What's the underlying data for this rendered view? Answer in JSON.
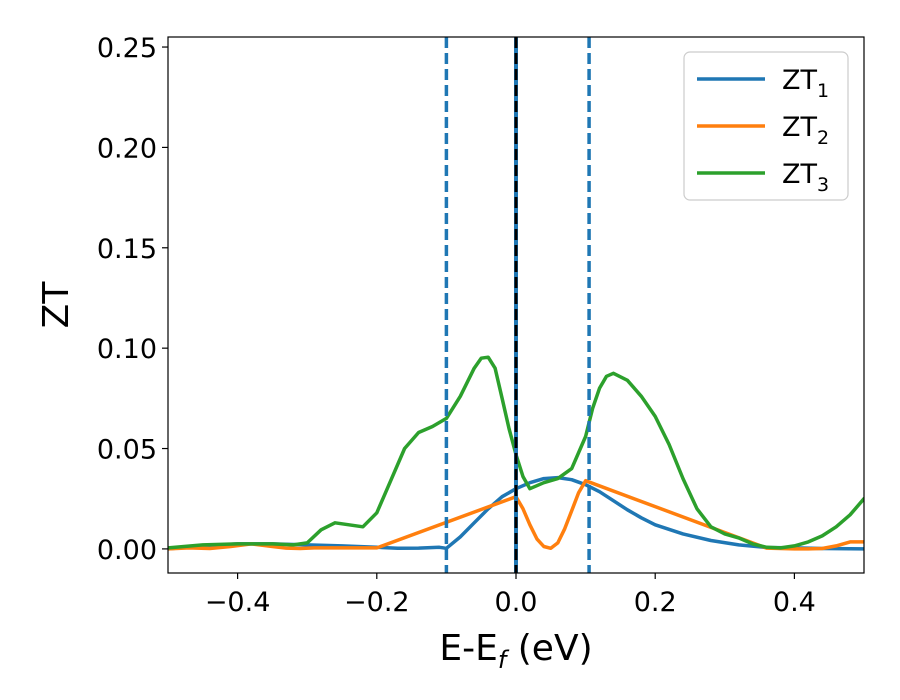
{
  "chart_data": {
    "type": "line",
    "xlabel": {
      "main": "E-E",
      "sub": "f",
      "unit": " (eV)"
    },
    "ylabel": "ZT",
    "xlim": [
      -0.5,
      0.5
    ],
    "ylim": [
      -0.012,
      0.255
    ],
    "xticks": [
      {
        "value": -0.4,
        "label": "−0.4"
      },
      {
        "value": -0.2,
        "label": "−0.2"
      },
      {
        "value": 0.0,
        "label": "0.0"
      },
      {
        "value": 0.2,
        "label": "0.2"
      },
      {
        "value": 0.4,
        "label": "0.4"
      }
    ],
    "yticks": [
      {
        "value": 0.0,
        "label": "0.00"
      },
      {
        "value": 0.05,
        "label": "0.05"
      },
      {
        "value": 0.1,
        "label": "0.10"
      },
      {
        "value": 0.15,
        "label": "0.15"
      },
      {
        "value": 0.2,
        "label": "0.20"
      },
      {
        "value": 0.25,
        "label": "0.25"
      }
    ],
    "grid": false,
    "legend_position": "top-right",
    "vlines": [
      {
        "x": -0.1,
        "style": "dashed",
        "color": "#1f77b4"
      },
      {
        "x": 0.105,
        "style": "dashed",
        "color": "#1f77b4"
      },
      {
        "x": 0.0,
        "style": "dashed",
        "color": "#000000"
      }
    ],
    "series": [
      {
        "name": "ZT",
        "sub": "1",
        "color": "#1f77b4",
        "x": [
          -0.5,
          -0.45,
          -0.4,
          -0.35,
          -0.3,
          -0.25,
          -0.2,
          -0.17,
          -0.14,
          -0.11,
          -0.1,
          -0.08,
          -0.06,
          -0.04,
          -0.02,
          0.0,
          0.02,
          0.04,
          0.06,
          0.08,
          0.1,
          0.12,
          0.14,
          0.16,
          0.18,
          0.2,
          0.24,
          0.28,
          0.32,
          0.36,
          0.4,
          0.44,
          0.5
        ],
        "y": [
          0.0,
          0.0015,
          0.0025,
          0.0025,
          0.002,
          0.0015,
          0.0008,
          0.0003,
          0.0004,
          0.0008,
          0.0003,
          0.006,
          0.013,
          0.02,
          0.026,
          0.03,
          0.033,
          0.035,
          0.0355,
          0.0345,
          0.032,
          0.0285,
          0.024,
          0.0195,
          0.0155,
          0.012,
          0.0075,
          0.0042,
          0.002,
          0.0007,
          0.0005,
          0.0002,
          0.0
        ]
      },
      {
        "name": "ZT",
        "sub": "2",
        "color": "#ff7f0e",
        "x": [
          -0.5,
          -0.47,
          -0.44,
          -0.41,
          -0.38,
          -0.35,
          -0.33,
          -0.31,
          -0.29,
          -0.2,
          0.0,
          0.01,
          0.02,
          0.03,
          0.04,
          0.05,
          0.06,
          0.07,
          0.08,
          0.09,
          0.1,
          0.36,
          0.38,
          0.4,
          0.42,
          0.44,
          0.46,
          0.48,
          0.5
        ],
        "y": [
          0.0,
          0.0005,
          0.0002,
          0.0012,
          0.0025,
          0.0012,
          0.0004,
          0.0002,
          0.0005,
          0.0005,
          0.026,
          0.02,
          0.012,
          0.005,
          0.0012,
          0.0003,
          0.003,
          0.01,
          0.019,
          0.028,
          0.034,
          0.0004,
          0.0002,
          0.0,
          0.0,
          0.0002,
          0.0015,
          0.0035,
          0.0035
        ]
      },
      {
        "name": "ZT",
        "sub": "3",
        "color": "#2ca02c",
        "x": [
          -0.5,
          -0.45,
          -0.4,
          -0.35,
          -0.32,
          -0.3,
          -0.28,
          -0.26,
          -0.24,
          -0.22,
          -0.2,
          -0.18,
          -0.16,
          -0.14,
          -0.12,
          -0.1,
          -0.08,
          -0.06,
          -0.05,
          -0.04,
          -0.03,
          -0.02,
          -0.01,
          0.0,
          0.01,
          0.02,
          0.04,
          0.06,
          0.08,
          0.1,
          0.11,
          0.12,
          0.13,
          0.14,
          0.16,
          0.18,
          0.2,
          0.22,
          0.24,
          0.26,
          0.28,
          0.3,
          0.32,
          0.34,
          0.36,
          0.38,
          0.4,
          0.42,
          0.44,
          0.46,
          0.48,
          0.5
        ],
        "y": [
          0.0005,
          0.002,
          0.0025,
          0.0025,
          0.002,
          0.003,
          0.0095,
          0.013,
          0.012,
          0.011,
          0.018,
          0.034,
          0.05,
          0.058,
          0.061,
          0.065,
          0.076,
          0.09,
          0.095,
          0.0955,
          0.09,
          0.075,
          0.06,
          0.047,
          0.036,
          0.03,
          0.033,
          0.035,
          0.04,
          0.056,
          0.07,
          0.08,
          0.086,
          0.0875,
          0.084,
          0.076,
          0.066,
          0.052,
          0.035,
          0.02,
          0.011,
          0.0075,
          0.0055,
          0.0025,
          0.0008,
          0.0005,
          0.0015,
          0.0035,
          0.0065,
          0.011,
          0.017,
          0.025
        ]
      }
    ]
  }
}
